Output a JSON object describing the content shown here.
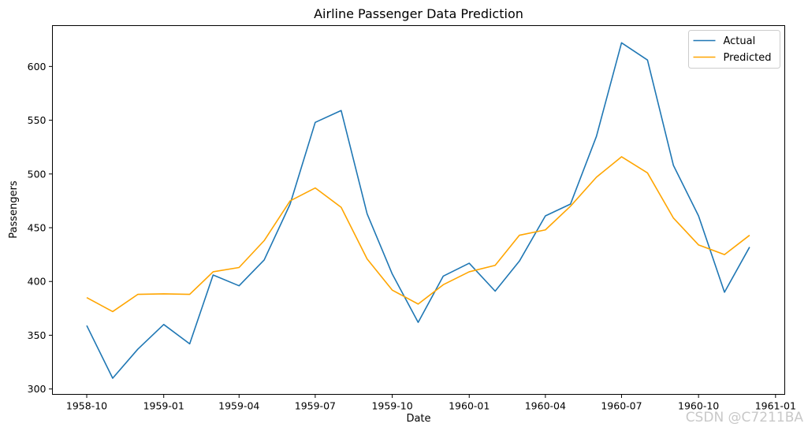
{
  "chart_data": {
    "type": "line",
    "title": "Airline Passenger Data Prediction",
    "xlabel": "Date",
    "ylabel": "Passengers",
    "x": [
      "1958-10",
      "1958-11",
      "1958-12",
      "1959-01",
      "1959-02",
      "1959-03",
      "1959-04",
      "1959-05",
      "1959-06",
      "1959-07",
      "1959-08",
      "1959-09",
      "1959-10",
      "1959-11",
      "1959-12",
      "1960-01",
      "1960-02",
      "1960-03",
      "1960-04",
      "1960-05",
      "1960-06",
      "1960-07",
      "1960-08",
      "1960-09",
      "1960-10",
      "1960-11",
      "1960-12"
    ],
    "x_ticks": [
      "1958-10",
      "1959-01",
      "1959-04",
      "1959-07",
      "1959-10",
      "1960-01",
      "1960-04",
      "1960-07",
      "1960-10",
      "1961-01"
    ],
    "x_tick_labels": [
      "1958-10",
      "1959-01",
      "1959-04",
      "1959-07",
      "1959-10",
      "1960-01",
      "1960-04",
      "1960-07",
      "1960-10",
      "1961-01"
    ],
    "y_ticks": [
      300,
      350,
      400,
      450,
      500,
      550,
      600
    ],
    "y_tick_labels": [
      "300",
      "350",
      "400",
      "450",
      "500",
      "550",
      "600"
    ],
    "ylim": [
      295,
      638
    ],
    "xlim": [
      "1958-08-21",
      "1961-01-12"
    ],
    "legend_position": "top-right",
    "grid": false,
    "series": [
      {
        "name": "Actual",
        "color": "#1f77b4",
        "values": [
          359,
          310,
          337,
          360,
          342,
          406,
          396,
          420,
          472,
          548,
          559,
          463,
          407,
          362,
          405,
          417,
          391,
          419,
          461,
          472,
          535,
          622,
          606,
          508,
          461,
          390,
          432
        ]
      },
      {
        "name": "Predicted",
        "color": "#ffa500",
        "values": [
          385,
          372,
          388,
          388.5,
          388,
          409,
          413,
          438,
          475,
          487,
          469,
          421,
          392,
          379,
          397,
          409,
          415,
          443,
          448,
          470,
          497,
          516,
          501,
          459,
          434,
          425,
          443
        ]
      }
    ]
  },
  "watermark": "CSDN @C7211BA"
}
